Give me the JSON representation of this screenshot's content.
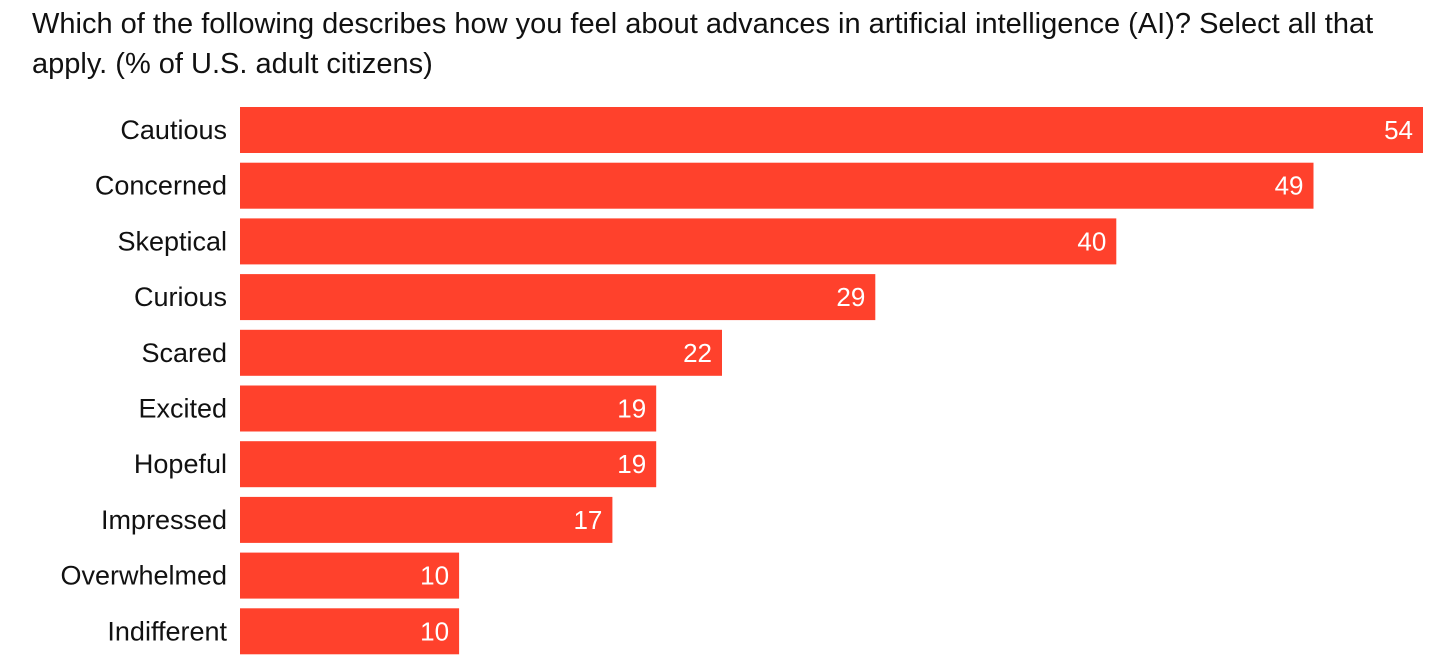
{
  "chart_data": {
    "type": "bar",
    "orientation": "horizontal",
    "title": "Which of the following describes how you feel about advances in artificial intelligence (AI)? Select all that apply. (% of U.S. adult citizens)",
    "categories": [
      "Cautious",
      "Concerned",
      "Skeptical",
      "Curious",
      "Scared",
      "Excited",
      "Hopeful",
      "Impressed",
      "Overwhelmed",
      "Indifferent"
    ],
    "values": [
      54,
      49,
      40,
      29,
      22,
      19,
      19,
      17,
      10,
      10
    ],
    "xlim": [
      0,
      54
    ],
    "grid": false,
    "legend": "none",
    "data_labels": "inside-end",
    "bar_color": "#ff412c",
    "label_color": "#ffffff"
  }
}
